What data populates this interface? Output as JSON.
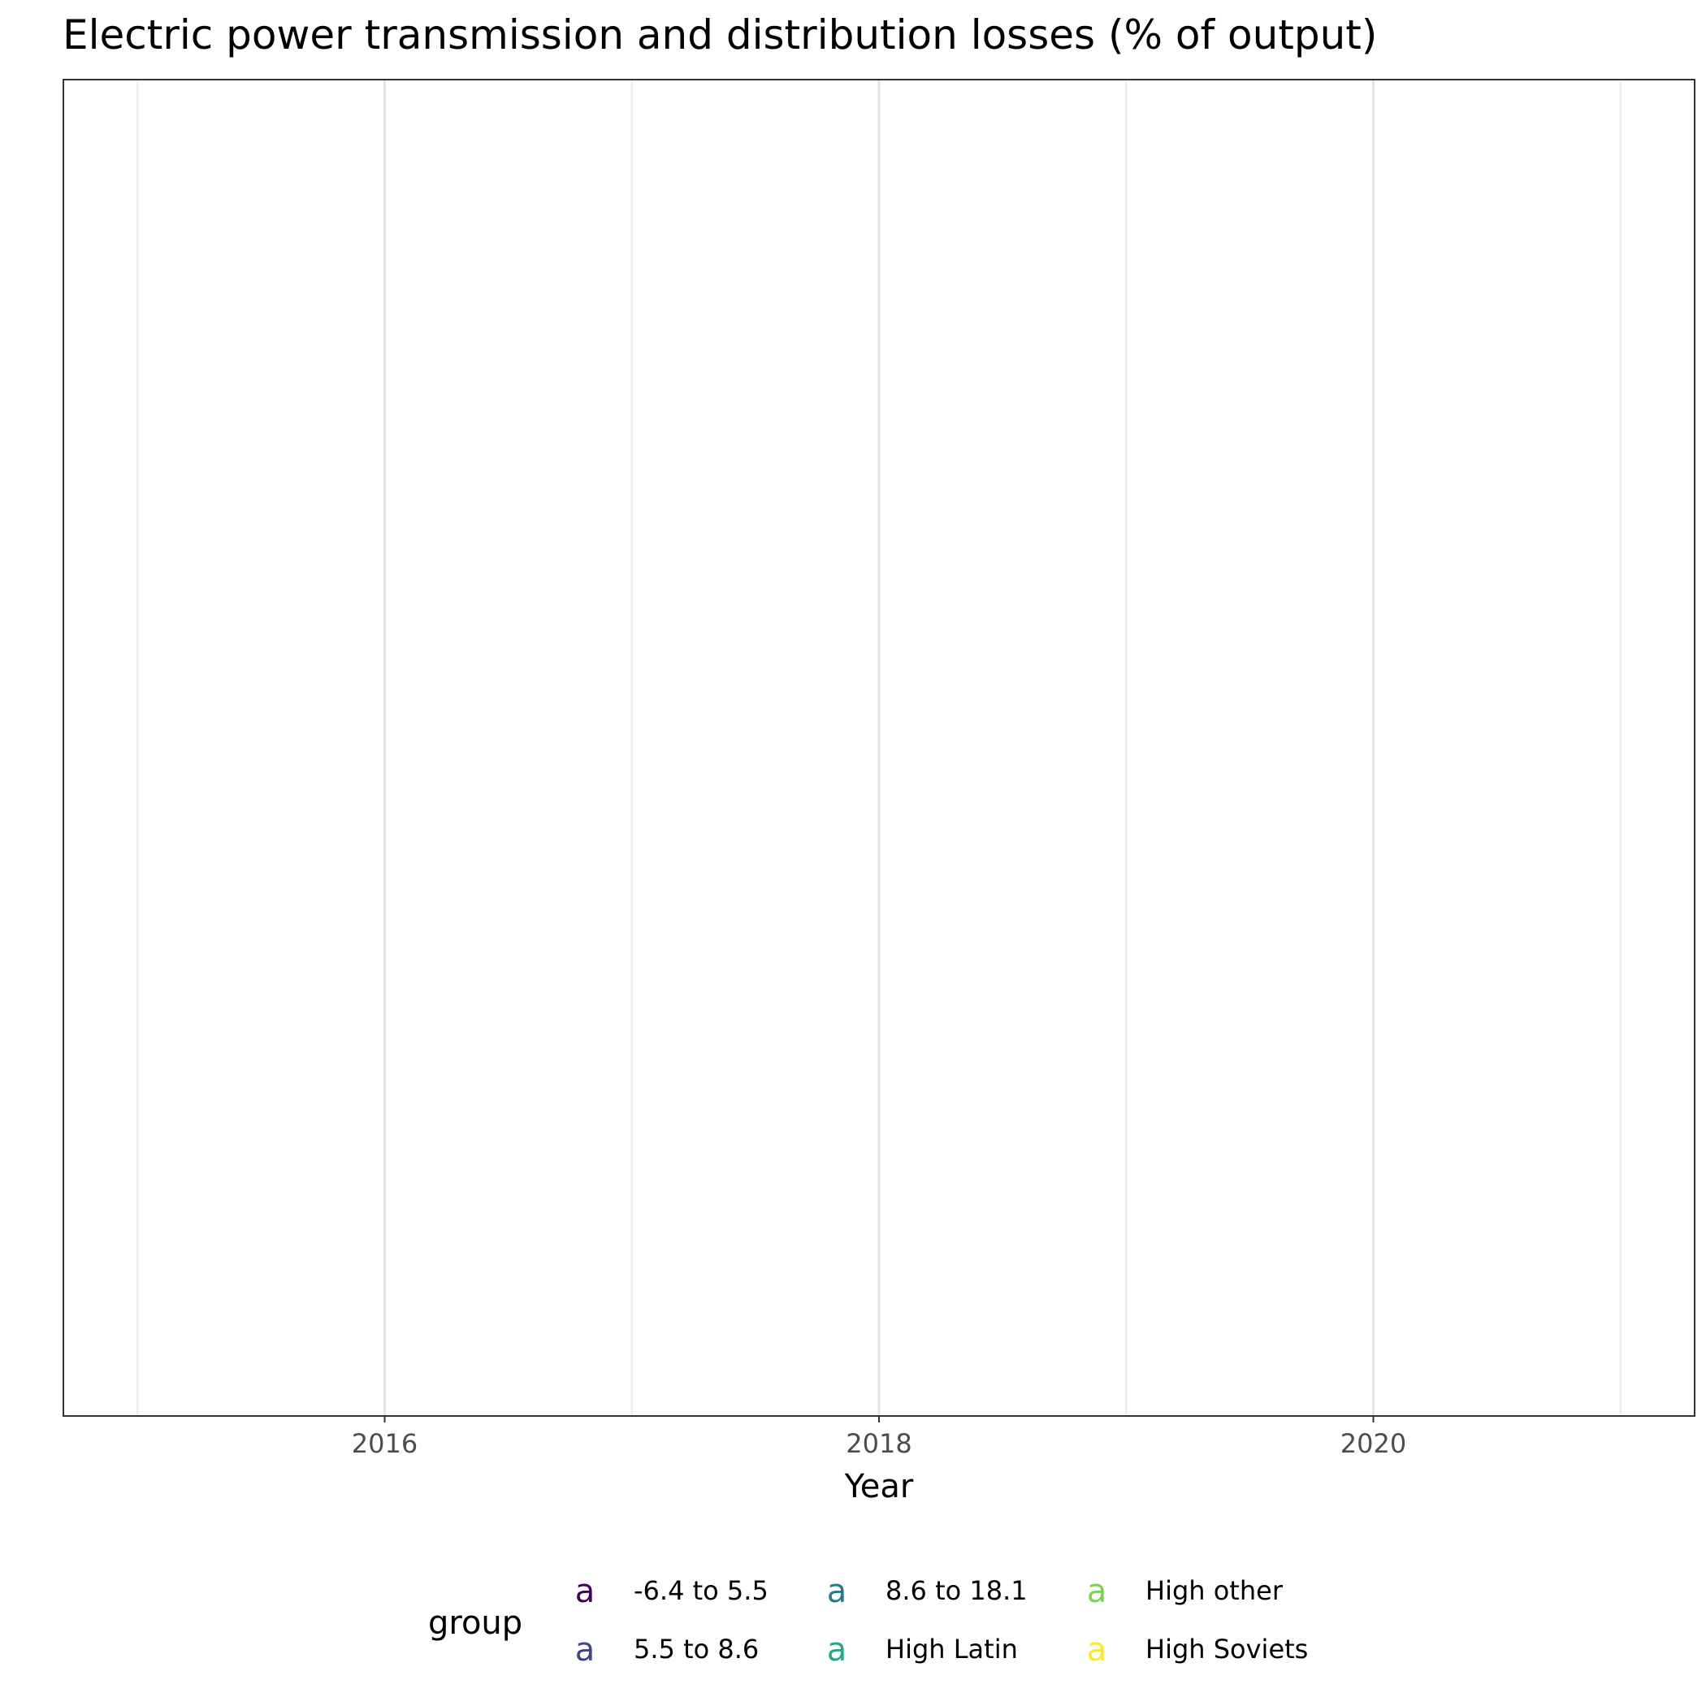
{
  "chart_data": {
    "type": "line",
    "title": "Electric power transmission and distribution losses (% of output)",
    "xlabel": "Year",
    "ylabel": "",
    "xlim": [
      2014.7,
      2021.3
    ],
    "x_ticks": [
      2016,
      2018,
      2020
    ],
    "x_tick_labels": [
      "2016",
      "2018",
      "2020"
    ],
    "x_minor_ticks": [
      2015,
      2017,
      2019,
      2021
    ],
    "grid": true,
    "legend_position": "bottom",
    "legend": {
      "title": "group",
      "key_glyph": "a",
      "entries": [
        {
          "label": "-6.4 to 5.5",
          "color": "#440154"
        },
        {
          "label": "5.5 to 8.6",
          "color": "#414487"
        },
        {
          "label": "8.6 to 18.1",
          "color": "#2A788E"
        },
        {
          "label": "High Latin",
          "color": "#22A884"
        },
        {
          "label": "High other",
          "color": "#7AD151"
        },
        {
          "label": "High Soviets",
          "color": "#FDE725"
        }
      ]
    },
    "series": []
  }
}
